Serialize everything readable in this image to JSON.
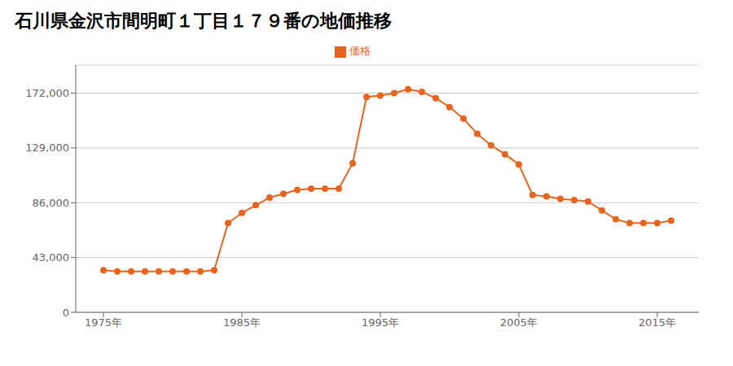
{
  "chart_data": {
    "type": "line",
    "title": "石川県金沢市間明町１丁目１７９番の地価推移",
    "x": [
      1975,
      1976,
      1977,
      1978,
      1979,
      1980,
      1981,
      1982,
      1983,
      1984,
      1985,
      1986,
      1987,
      1988,
      1989,
      1990,
      1991,
      1992,
      1993,
      1994,
      1995,
      1996,
      1997,
      1998,
      1999,
      2000,
      2001,
      2002,
      2003,
      2004,
      2005,
      2006,
      2007,
      2008,
      2009,
      2010,
      2011,
      2012,
      2013,
      2014,
      2015,
      2016
    ],
    "series": [
      {
        "name": "価格",
        "color": "#e8641e",
        "marker": "circle",
        "values": [
          33000,
          32000,
          32000,
          32000,
          32000,
          32000,
          32000,
          32000,
          33000,
          70000,
          78000,
          84000,
          90000,
          93000,
          96000,
          97000,
          97000,
          97000,
          117000,
          169000,
          170000,
          172000,
          175000,
          173000,
          168000,
          161000,
          152000,
          140000,
          131000,
          124000,
          116000,
          92000,
          91000,
          89000,
          88000,
          87000,
          80000,
          73000,
          70000,
          70000,
          70000,
          72000
        ]
      }
    ],
    "xlim": [
      1973,
      2018
    ],
    "xticks": [
      {
        "value": 1975,
        "label": "1975年"
      },
      {
        "value": 1985,
        "label": "1985年"
      },
      {
        "value": 1995,
        "label": "1995年"
      },
      {
        "value": 2005,
        "label": "2005年"
      },
      {
        "value": 2015,
        "label": "2015年"
      }
    ],
    "ylim": [
      0,
      194000
    ],
    "yticks": [
      0,
      {
        "value": 43000,
        "label": "43,000"
      },
      {
        "value": 86000,
        "label": "86,000"
      },
      {
        "value": 129000,
        "label": "129,000"
      },
      {
        "value": 172000,
        "label": "172,000"
      }
    ],
    "grid": "y",
    "legend": "top"
  }
}
